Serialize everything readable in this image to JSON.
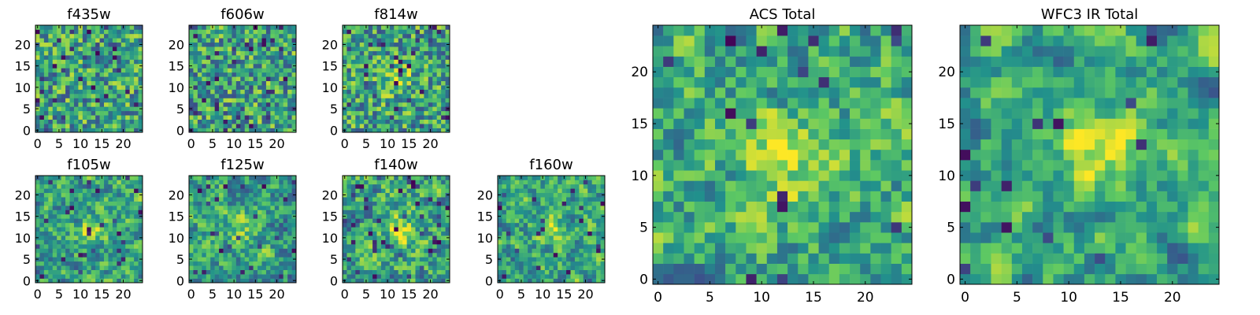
{
  "figure": {
    "colormap": [
      "#440154",
      "#3b528b",
      "#21918c",
      "#5ec962",
      "#fde725"
    ]
  },
  "chart_data": [
    {
      "type": "heatmap",
      "title": "f435w",
      "grid_size": 25,
      "seed": 11,
      "smooth": 0,
      "dark_fraction": 0.06,
      "hot": [],
      "xticks": [
        0,
        5,
        10,
        15,
        20
      ],
      "yticks": [
        0,
        5,
        10,
        15,
        20
      ],
      "xlim": [
        0,
        25
      ],
      "ylim": [
        0,
        25
      ]
    },
    {
      "type": "heatmap",
      "title": "f606w",
      "grid_size": 25,
      "seed": 23,
      "smooth": 0,
      "dark_fraction": 0.06,
      "hot": [],
      "xticks": [
        0,
        5,
        10,
        15,
        20
      ],
      "yticks": [
        0,
        5,
        10,
        15,
        20
      ],
      "xlim": [
        0,
        25
      ],
      "ylim": [
        0,
        25
      ]
    },
    {
      "type": "heatmap",
      "title": "f814w",
      "grid_size": 25,
      "seed": 37,
      "smooth": 0,
      "dark_fraction": 0.06,
      "hot": [
        12,
        12,
        0.25
      ],
      "xticks": [
        0,
        5,
        10,
        15,
        20
      ],
      "yticks": [
        0,
        5,
        10,
        15,
        20
      ],
      "xlim": [
        0,
        25
      ],
      "ylim": [
        0,
        25
      ]
    },
    {
      "type": "heatmap",
      "title": "f105w",
      "grid_size": 25,
      "seed": 41,
      "smooth": 1,
      "dark_fraction": 0.05,
      "hot": [
        13,
        12,
        0.3
      ],
      "xticks": [
        0,
        5,
        10,
        15,
        20
      ],
      "yticks": [
        0,
        5,
        10,
        15,
        20
      ],
      "xlim": [
        0,
        25
      ],
      "ylim": [
        0,
        25
      ]
    },
    {
      "type": "heatmap",
      "title": "f125w",
      "grid_size": 25,
      "seed": 53,
      "smooth": 1,
      "dark_fraction": 0.05,
      "hot": [
        12,
        12,
        0.2
      ],
      "xticks": [
        0,
        5,
        10,
        15,
        20
      ],
      "yticks": [
        0,
        5,
        10,
        15,
        20
      ],
      "xlim": [
        0,
        25
      ],
      "ylim": [
        0,
        25
      ]
    },
    {
      "type": "heatmap",
      "title": "f140w",
      "grid_size": 25,
      "seed": 67,
      "smooth": 1,
      "dark_fraction": 0.05,
      "hot": [
        13,
        12,
        0.3
      ],
      "xticks": [
        0,
        5,
        10,
        15,
        20
      ],
      "yticks": [
        0,
        5,
        10,
        15,
        20
      ],
      "xlim": [
        0,
        25
      ],
      "ylim": [
        0,
        25
      ]
    },
    {
      "type": "heatmap",
      "title": "f160w",
      "grid_size": 25,
      "seed": 79,
      "smooth": 1,
      "dark_fraction": 0.05,
      "hot": [
        12,
        12,
        0.25
      ],
      "xticks": [
        0,
        5,
        10,
        15,
        20
      ],
      "yticks": [
        0,
        5,
        10,
        15,
        20
      ],
      "xlim": [
        0,
        25
      ],
      "ylim": [
        0,
        25
      ]
    },
    {
      "type": "heatmap",
      "title": "ACS Total",
      "grid_size": 25,
      "seed": 97,
      "smooth": 1,
      "dark_fraction": 0.03,
      "hot": [
        12,
        12,
        0.35
      ],
      "xticks": [
        0,
        5,
        10,
        15,
        20
      ],
      "yticks": [
        0,
        5,
        10,
        15,
        20
      ],
      "xlim": [
        0,
        25
      ],
      "ylim": [
        0,
        25
      ]
    },
    {
      "type": "heatmap",
      "title": "WFC3 IR Total",
      "grid_size": 25,
      "seed": 113,
      "smooth": 2,
      "dark_fraction": 0.03,
      "hot": [
        13,
        13,
        0.35
      ],
      "xticks": [
        0,
        5,
        10,
        15,
        20
      ],
      "yticks": [
        0,
        5,
        10,
        15,
        20
      ],
      "xlim": [
        0,
        25
      ],
      "ylim": [
        0,
        25
      ]
    }
  ]
}
